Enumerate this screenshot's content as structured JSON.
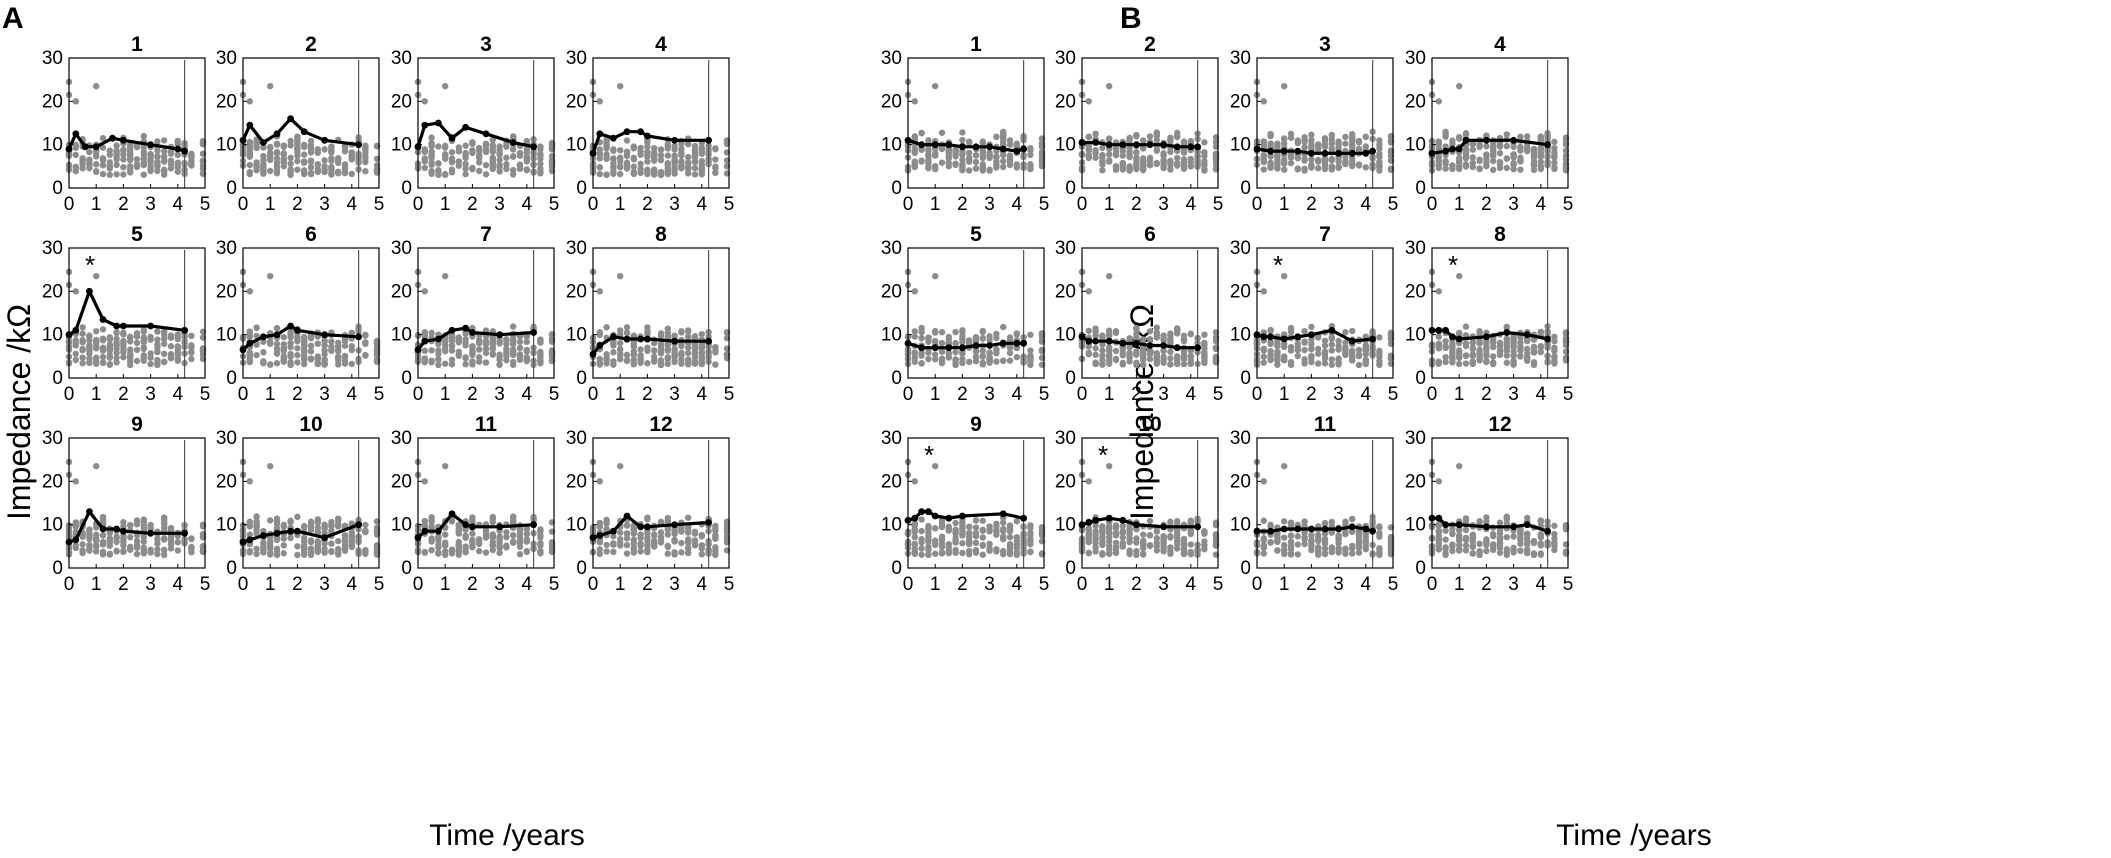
{
  "chart_data": {
    "type": "scatter",
    "ylabel": "Impedance /kΩ",
    "xlabel": "Time /years",
    "xlim": [
      0,
      5
    ],
    "ylim": [
      0,
      30
    ],
    "xticks": [
      "0",
      "1",
      "2",
      "3",
      "4",
      "5"
    ],
    "yticks": [
      "0",
      "10",
      "20",
      "30"
    ],
    "reference_line_x": 4.25,
    "scatter_x": [
      0,
      0.25,
      0.5,
      0.75,
      1,
      1.25,
      1.5,
      1.75,
      2,
      2.25,
      2.5,
      2.75,
      3,
      3.25,
      3.5,
      3.75,
      4,
      4.25,
      4.5,
      5
    ],
    "panels": [
      {
        "label": "A",
        "subplots": [
          {
            "title": "1",
            "star": false,
            "mean": {
              "x": [
                0,
                0.25,
                0.6,
                1,
                1.6,
                2,
                3,
                4,
                4.25
              ],
              "y": [
                9,
                12.5,
                9.5,
                9.5,
                11.5,
                11,
                10,
                9,
                8.5
              ]
            }
          },
          {
            "title": "2",
            "star": false,
            "mean": {
              "x": [
                0,
                0.25,
                0.75,
                1.25,
                1.75,
                2.25,
                3,
                4.25
              ],
              "y": [
                11,
                14.5,
                10.5,
                12.5,
                16,
                13,
                11,
                10
              ]
            }
          },
          {
            "title": "3",
            "star": false,
            "mean": {
              "x": [
                0,
                0.25,
                0.75,
                1.25,
                1.75,
                2.5,
                3.5,
                4.25
              ],
              "y": [
                9.5,
                14.5,
                15,
                11.5,
                14,
                12.5,
                10.5,
                9.5
              ]
            }
          },
          {
            "title": "4",
            "star": false,
            "mean": {
              "x": [
                0,
                0.25,
                0.75,
                1.25,
                1.75,
                2,
                3,
                4.25
              ],
              "y": [
                8,
                12.5,
                11.5,
                13,
                13,
                12,
                11,
                11
              ]
            }
          },
          {
            "title": "5",
            "star": true,
            "mean": {
              "x": [
                0,
                0.25,
                0.75,
                1.25,
                1.75,
                2,
                3,
                4.25
              ],
              "y": [
                10,
                11,
                20,
                13.5,
                12,
                12,
                12,
                11
              ]
            }
          },
          {
            "title": "6",
            "star": false,
            "mean": {
              "x": [
                0,
                0.25,
                0.75,
                1.25,
                1.75,
                2,
                3,
                4.25
              ],
              "y": [
                6.5,
                8,
                9.5,
                10,
                12,
                11,
                10,
                9.5
              ]
            }
          },
          {
            "title": "7",
            "star": false,
            "mean": {
              "x": [
                0,
                0.25,
                0.75,
                1.25,
                1.75,
                2,
                3,
                4.25
              ],
              "y": [
                6.5,
                8.5,
                9,
                11,
                11.5,
                10.5,
                10,
                10.5
              ]
            }
          },
          {
            "title": "8",
            "star": false,
            "mean": {
              "x": [
                0,
                0.25,
                0.75,
                1.25,
                1.75,
                2,
                3,
                4.25
              ],
              "y": [
                5.5,
                7.5,
                9.5,
                9,
                9,
                9,
                8.5,
                8.5
              ]
            }
          },
          {
            "title": "9",
            "star": false,
            "mean": {
              "x": [
                0,
                0.25,
                0.75,
                1.25,
                1.75,
                2,
                3,
                4.25
              ],
              "y": [
                6,
                6.5,
                13,
                9,
                9,
                8.5,
                8,
                8
              ]
            }
          },
          {
            "title": "10",
            "star": false,
            "mean": {
              "x": [
                0,
                0.25,
                0.75,
                1.25,
                1.75,
                2,
                3,
                4.25
              ],
              "y": [
                6,
                6.5,
                7.5,
                8,
                8.5,
                8.5,
                7,
                10
              ]
            }
          },
          {
            "title": "11",
            "star": false,
            "mean": {
              "x": [
                0,
                0.25,
                0.75,
                1.25,
                1.75,
                2,
                3,
                4.25
              ],
              "y": [
                7,
                8.5,
                8.5,
                12.5,
                10,
                9.5,
                9.5,
                10
              ]
            }
          },
          {
            "title": "12",
            "star": false,
            "mean": {
              "x": [
                0,
                0.25,
                0.75,
                1.25,
                1.75,
                2,
                3,
                4.25
              ],
              "y": [
                7,
                7.5,
                8.5,
                12,
                9.5,
                9.5,
                10,
                10.5
              ]
            }
          }
        ]
      },
      {
        "label": "B",
        "subplots": [
          {
            "title": "1",
            "star": false,
            "mean": {
              "x": [
                0,
                0.5,
                1,
                1.5,
                2,
                2.5,
                3,
                3.5,
                4,
                4.25
              ],
              "y": [
                11,
                10,
                10,
                10,
                9.5,
                9.5,
                9.5,
                9,
                8.5,
                9
              ]
            }
          },
          {
            "title": "2",
            "star": false,
            "mean": {
              "x": [
                0,
                0.5,
                1,
                1.5,
                2,
                2.5,
                3,
                3.5,
                4,
                4.25
              ],
              "y": [
                10.5,
                10.5,
                10,
                10,
                10,
                10,
                10,
                9.5,
                9.5,
                9.5
              ]
            }
          },
          {
            "title": "3",
            "star": false,
            "mean": {
              "x": [
                0,
                0.5,
                1,
                1.5,
                2,
                2.5,
                3,
                3.5,
                4,
                4.25
              ],
              "y": [
                9,
                8.5,
                8.5,
                8.5,
                8,
                8,
                8,
                8,
                8,
                8.5
              ]
            }
          },
          {
            "title": "4",
            "star": false,
            "mean": {
              "x": [
                0,
                0.5,
                0.75,
                1,
                1.25,
                2,
                3,
                4.25
              ],
              "y": [
                8,
                8.5,
                9,
                9,
                11,
                11,
                11,
                10
              ]
            }
          },
          {
            "title": "5",
            "star": false,
            "mean": {
              "x": [
                0,
                0.5,
                1,
                1.5,
                2,
                2.5,
                3,
                3.5,
                4,
                4.25
              ],
              "y": [
                8,
                7,
                7,
                7,
                7,
                7.5,
                7.5,
                8,
                8,
                8
              ]
            }
          },
          {
            "title": "6",
            "star": false,
            "mean": {
              "x": [
                0,
                0.25,
                0.5,
                1,
                1.5,
                2,
                2.5,
                3,
                3.5,
                4.25
              ],
              "y": [
                9.5,
                8.5,
                8.5,
                8.5,
                8,
                8,
                7.5,
                7.5,
                7,
                7
              ]
            }
          },
          {
            "title": "7",
            "star": true,
            "mean": {
              "x": [
                0,
                0.25,
                0.5,
                1,
                1.5,
                2,
                2.75,
                3.5,
                4.25
              ],
              "y": [
                10,
                9.5,
                9.5,
                9,
                9.5,
                10,
                11,
                8.5,
                9
              ]
            }
          },
          {
            "title": "8",
            "star": true,
            "mean": {
              "x": [
                0,
                0.25,
                0.5,
                0.75,
                1,
                2,
                2.75,
                3.5,
                4.25
              ],
              "y": [
                11,
                11,
                11,
                9.5,
                9,
                9.5,
                10.5,
                10,
                9
              ]
            }
          },
          {
            "title": "9",
            "star": true,
            "mean": {
              "x": [
                0,
                0.25,
                0.5,
                0.75,
                1,
                1.5,
                2,
                3.5,
                4.25
              ],
              "y": [
                11,
                11.5,
                13,
                13,
                12,
                11.5,
                12,
                12.5,
                11.5
              ]
            }
          },
          {
            "title": "10",
            "star": true,
            "mean": {
              "x": [
                0,
                0.25,
                0.5,
                1,
                1.5,
                2,
                3,
                4.25
              ],
              "y": [
                10,
                10.5,
                11,
                11.5,
                11,
                10,
                9.5,
                9.5
              ]
            }
          },
          {
            "title": "11",
            "star": false,
            "mean": {
              "x": [
                0,
                0.5,
                1,
                1.5,
                2,
                2.5,
                3,
                3.5,
                4,
                4.25
              ],
              "y": [
                8.5,
                8.5,
                9,
                9,
                9,
                9,
                9,
                9.5,
                9,
                8.5
              ]
            }
          },
          {
            "title": "12",
            "star": false,
            "mean": {
              "x": [
                0,
                0.25,
                0.5,
                1,
                2,
                3,
                3.5,
                4.25
              ],
              "y": [
                11.5,
                11.5,
                10,
                10,
                9.5,
                9.5,
                10,
                8.5
              ]
            }
          }
        ]
      }
    ]
  }
}
